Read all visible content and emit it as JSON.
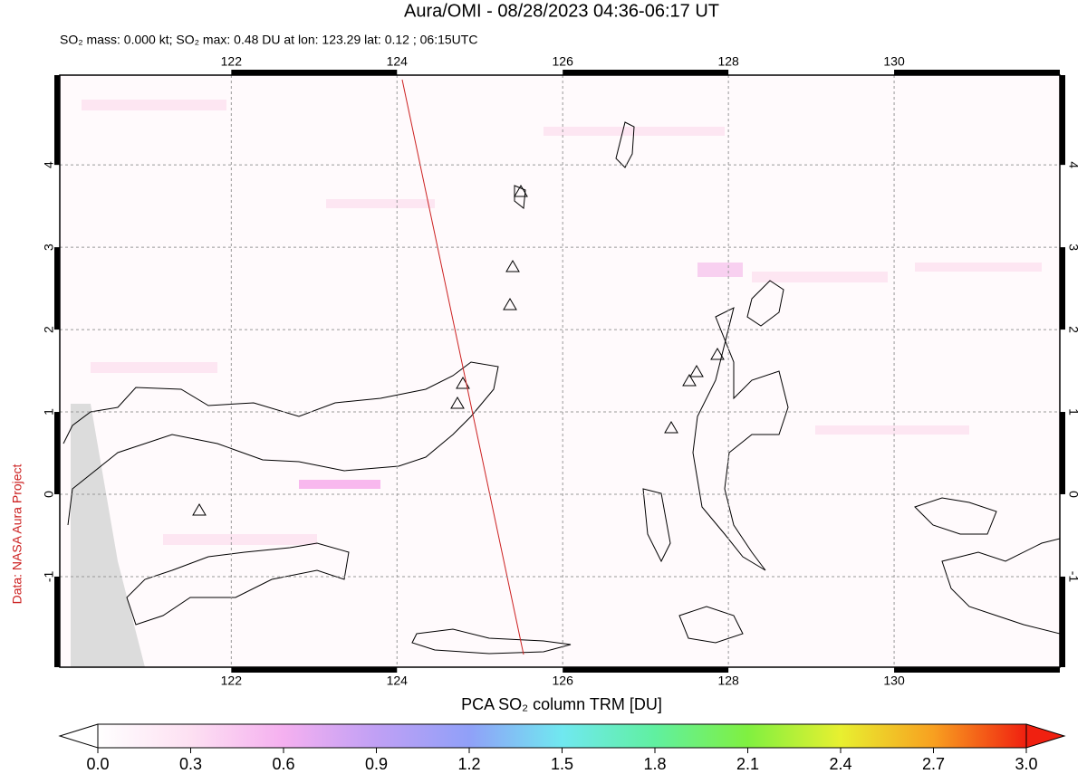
{
  "header": {
    "title": "Aura/OMI - 08/28/2023 04:36-06:17 UT",
    "subtitle": "SO₂ mass: 0.000 kt; SO₂ max: 0.48 DU at lon: 123.29 lat: 0.12 ; 06:15UTC"
  },
  "map": {
    "xlim": [
      119.93,
      132
    ],
    "ylim": [
      -2.1,
      5.09
    ],
    "xticks": [
      122,
      124,
      126,
      128,
      130
    ],
    "yticks": [
      -1,
      0,
      1,
      2,
      3,
      4
    ],
    "grid": true
  },
  "colorbar": {
    "label": "PCA SO₂ column TRM [DU]",
    "range": [
      0,
      3
    ],
    "ticks": [
      {
        "value": 0,
        "label": "0.0"
      },
      {
        "value": 0.3,
        "label": "0.3"
      },
      {
        "value": 0.6,
        "label": "0.6"
      },
      {
        "value": 0.9,
        "label": "0.9"
      },
      {
        "value": 1.2,
        "label": "1.2"
      },
      {
        "value": 1.5,
        "label": "1.5"
      },
      {
        "value": 1.8,
        "label": "1.8"
      },
      {
        "value": 2.1,
        "label": "2.1"
      },
      {
        "value": 2.4,
        "label": "2.4"
      },
      {
        "value": 2.7,
        "label": "2.7"
      },
      {
        "value": 3,
        "label": "3.0"
      }
    ]
  },
  "credit": "Data: NASA Aura Project"
}
